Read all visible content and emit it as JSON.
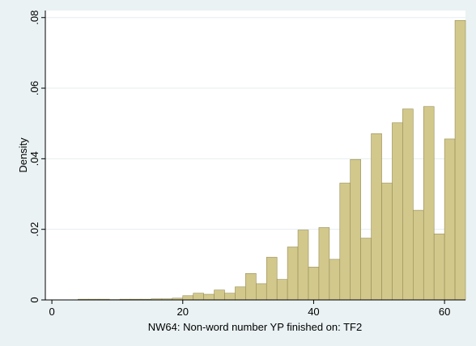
{
  "chart_data": {
    "type": "bar",
    "bin_width": 1.6,
    "bins_start": [
      4.0,
      5.6,
      7.2,
      8.8,
      10.4,
      12.0,
      13.6,
      15.2,
      16.8,
      18.4,
      20.0,
      21.6,
      23.2,
      24.8,
      26.4,
      28.0,
      29.6,
      31.2,
      32.8,
      34.4,
      36.0,
      37.6,
      39.2,
      40.8,
      42.4,
      44.0,
      45.6,
      47.2,
      48.8,
      50.4,
      52.0,
      53.6,
      55.2,
      56.8,
      58.4,
      60.0,
      61.6
    ],
    "values": [
      0.0002,
      0.0002,
      0.0002,
      0.0001,
      0.0002,
      0.0002,
      0.0002,
      0.0003,
      0.0003,
      0.0005,
      0.0012,
      0.0019,
      0.0016,
      0.0028,
      0.0019,
      0.0037,
      0.0075,
      0.0046,
      0.0121,
      0.0058,
      0.015,
      0.0198,
      0.0093,
      0.0205,
      0.0115,
      0.0331,
      0.0398,
      0.0175,
      0.0471,
      0.0331,
      0.0502,
      0.0541,
      0.0254,
      0.0548,
      0.0187,
      0.0456,
      0.0792
    ],
    "xlabel": "NW64: Non-word number YP finished on: TF2",
    "ylabel": "Density",
    "xlim": [
      -1,
      63.2
    ],
    "ylim": [
      0,
      0.082
    ],
    "xticks": [
      0,
      20,
      40,
      60
    ],
    "xtick_labels": [
      "0",
      "20",
      "40",
      "60"
    ],
    "yticks": [
      0,
      0.02,
      0.04,
      0.06,
      0.08
    ],
    "ytick_labels": [
      "0",
      ".02",
      ".04",
      ".06",
      ".08"
    ],
    "grid": true,
    "colors": {
      "bar_fill": "#d2c88c",
      "bar_edge": "#968c54",
      "plot_bg": "#ffffff",
      "outer_bg": "#eaf2f3",
      "grid": "#e6eeef"
    }
  }
}
